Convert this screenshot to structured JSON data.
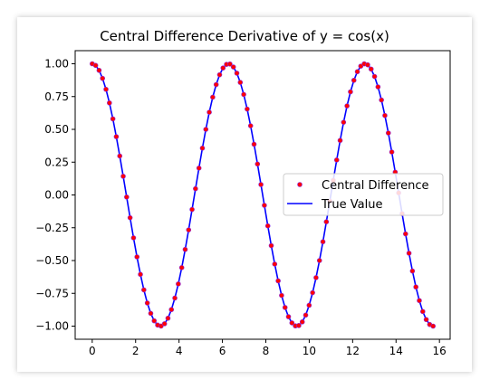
{
  "chart_data": {
    "type": "line",
    "title": "Central Difference Derivative of y = cos(x)",
    "xlabel": "",
    "ylabel": "",
    "xlim": [
      -0.785,
      16.493
    ],
    "ylim": [
      -1.1,
      1.1
    ],
    "x_ticks": [
      0,
      2,
      4,
      6,
      8,
      10,
      12,
      14,
      16
    ],
    "y_ticks": [
      1.0,
      0.75,
      0.5,
      0.25,
      0.0,
      -0.25,
      -0.5,
      -0.75,
      -1.0
    ],
    "x_tick_labels": [
      "0",
      "2",
      "4",
      "6",
      "8",
      "10",
      "12",
      "14",
      "16"
    ],
    "y_tick_labels": [
      "1.00",
      "0.75",
      "0.50",
      "0.25",
      "0.00",
      "−0.25",
      "−0.50",
      "−0.75",
      "−1.00"
    ],
    "x_range": [
      0,
      15.708
    ],
    "num_points": 100,
    "legend_position": "center-right",
    "grid": false,
    "series": [
      {
        "name": "Central Difference",
        "style": "scatter",
        "color": "#ff0000",
        "edge_color": "#8a2be2",
        "function": "cos(x)"
      },
      {
        "name": "True Value",
        "style": "line",
        "color": "#0000ff",
        "function": "cos(x)"
      }
    ]
  }
}
